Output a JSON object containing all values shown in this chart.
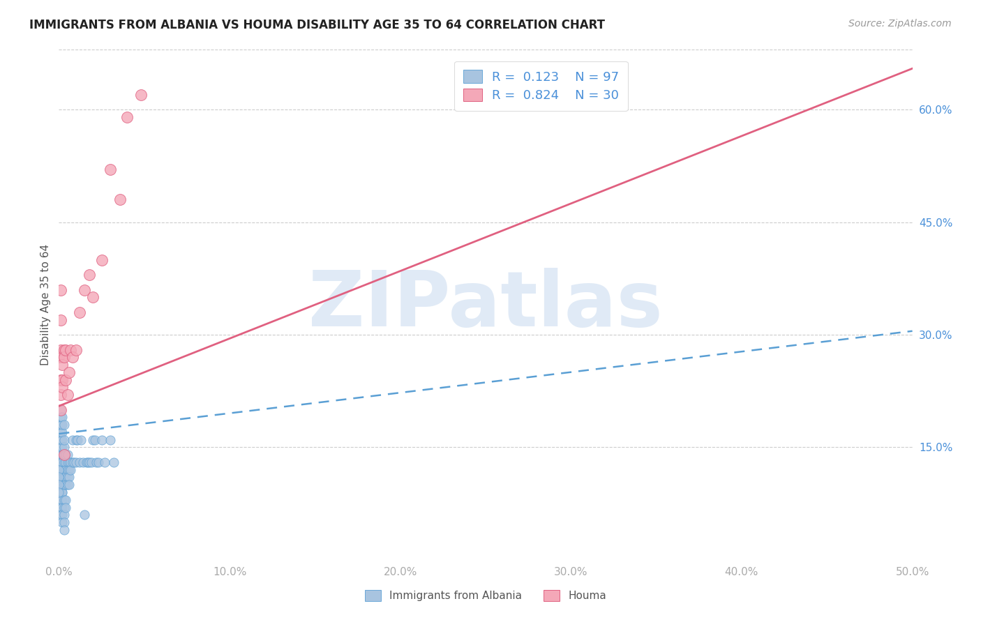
{
  "title": "IMMIGRANTS FROM ALBANIA VS HOUMA DISABILITY AGE 35 TO 64 CORRELATION CHART",
  "source": "Source: ZipAtlas.com",
  "ylabel": "Disability Age 35 to 64",
  "xlim": [
    0.0,
    0.5
  ],
  "ylim": [
    0.0,
    0.68
  ],
  "ytick_positions": [
    0.15,
    0.3,
    0.45,
    0.6
  ],
  "ytick_labels": [
    "15.0%",
    "30.0%",
    "45.0%",
    "60.0%"
  ],
  "xtick_positions": [
    0.0,
    0.1,
    0.2,
    0.3,
    0.4,
    0.5
  ],
  "xtick_labels": [
    "0.0%",
    "10.0%",
    "20.0%",
    "30.0%",
    "40.0%",
    "50.0%"
  ],
  "watermark": "ZIPatlas",
  "blue_R": 0.123,
  "blue_N": 97,
  "pink_R": 0.824,
  "pink_N": 30,
  "blue_dot_color": "#a8c4e0",
  "blue_dot_edge": "#5a9fd4",
  "pink_dot_color": "#f4a8b8",
  "pink_dot_edge": "#e06080",
  "blue_line_color": "#5a9fd4",
  "pink_line_color": "#e06080",
  "legend_text_color": "#4a90d9",
  "background_color": "#ffffff",
  "grid_color": "#cccccc",
  "title_color": "#222222",
  "source_color": "#999999",
  "blue_scatter_x": [
    0.001,
    0.001,
    0.001,
    0.001,
    0.001,
    0.001,
    0.001,
    0.001,
    0.001,
    0.001,
    0.001,
    0.001,
    0.001,
    0.001,
    0.001,
    0.001,
    0.001,
    0.001,
    0.001,
    0.001,
    0.002,
    0.002,
    0.002,
    0.002,
    0.002,
    0.002,
    0.002,
    0.002,
    0.002,
    0.002,
    0.002,
    0.002,
    0.002,
    0.002,
    0.002,
    0.002,
    0.002,
    0.002,
    0.002,
    0.002,
    0.003,
    0.003,
    0.003,
    0.003,
    0.003,
    0.003,
    0.003,
    0.003,
    0.003,
    0.003,
    0.003,
    0.003,
    0.003,
    0.004,
    0.004,
    0.004,
    0.004,
    0.004,
    0.004,
    0.004,
    0.005,
    0.005,
    0.005,
    0.005,
    0.005,
    0.006,
    0.006,
    0.006,
    0.006,
    0.007,
    0.007,
    0.008,
    0.008,
    0.009,
    0.01,
    0.01,
    0.011,
    0.012,
    0.013,
    0.014,
    0.015,
    0.016,
    0.017,
    0.018,
    0.019,
    0.02,
    0.021,
    0.022,
    0.023,
    0.025,
    0.027,
    0.03,
    0.032,
    0.0,
    0.0,
    0.0,
    0.0
  ],
  "blue_scatter_y": [
    0.13,
    0.12,
    0.11,
    0.1,
    0.09,
    0.08,
    0.14,
    0.15,
    0.16,
    0.17,
    0.18,
    0.19,
    0.2,
    0.07,
    0.06,
    0.13,
    0.12,
    0.11,
    0.1,
    0.09,
    0.13,
    0.12,
    0.11,
    0.1,
    0.09,
    0.14,
    0.15,
    0.16,
    0.17,
    0.18,
    0.19,
    0.08,
    0.07,
    0.06,
    0.05,
    0.13,
    0.12,
    0.11,
    0.1,
    0.09,
    0.13,
    0.12,
    0.11,
    0.1,
    0.14,
    0.15,
    0.16,
    0.08,
    0.07,
    0.06,
    0.05,
    0.04,
    0.18,
    0.13,
    0.12,
    0.11,
    0.1,
    0.14,
    0.08,
    0.07,
    0.13,
    0.12,
    0.11,
    0.1,
    0.14,
    0.13,
    0.12,
    0.11,
    0.1,
    0.13,
    0.12,
    0.13,
    0.16,
    0.13,
    0.13,
    0.16,
    0.16,
    0.13,
    0.16,
    0.13,
    0.06,
    0.13,
    0.13,
    0.13,
    0.13,
    0.16,
    0.16,
    0.13,
    0.13,
    0.16,
    0.13,
    0.16,
    0.13,
    0.12,
    0.11,
    0.1,
    0.09
  ],
  "pink_scatter_x": [
    0.0,
    0.001,
    0.001,
    0.001,
    0.001,
    0.001,
    0.001,
    0.002,
    0.002,
    0.002,
    0.002,
    0.003,
    0.003,
    0.003,
    0.004,
    0.004,
    0.005,
    0.006,
    0.007,
    0.008,
    0.01,
    0.012,
    0.015,
    0.018,
    0.02,
    0.025,
    0.03,
    0.036,
    0.04,
    0.048
  ],
  "pink_scatter_y": [
    0.27,
    0.28,
    0.24,
    0.22,
    0.2,
    0.32,
    0.36,
    0.27,
    0.24,
    0.23,
    0.26,
    0.28,
    0.27,
    0.14,
    0.28,
    0.24,
    0.22,
    0.25,
    0.28,
    0.27,
    0.28,
    0.33,
    0.36,
    0.38,
    0.35,
    0.4,
    0.52,
    0.48,
    0.59,
    0.62
  ],
  "blue_line_x": [
    0.0,
    0.5
  ],
  "blue_line_y": [
    0.168,
    0.305
  ],
  "pink_line_x": [
    0.0,
    0.5
  ],
  "pink_line_y": [
    0.205,
    0.655
  ]
}
